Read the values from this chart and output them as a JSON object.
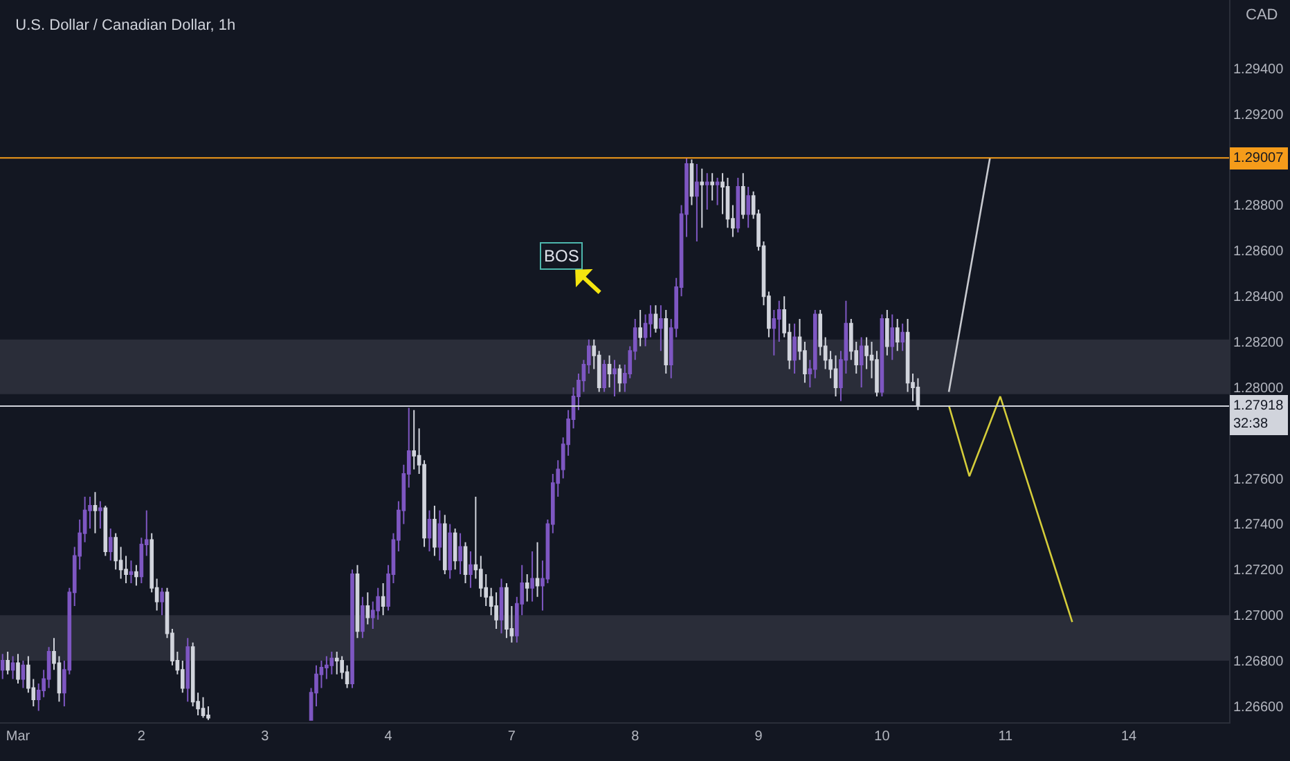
{
  "chart_data": {
    "type": "candlestick",
    "title": "U.S. Dollar / Canadian Dollar, 1h",
    "ylabel": "CAD",
    "categories": [
      null,
      null,
      null,
      "Mar",
      null,
      null,
      null,
      null,
      null,
      null,
      null,
      null,
      null,
      null,
      null,
      null,
      null,
      null,
      null,
      null,
      null,
      null,
      null,
      null,
      null,
      null,
      null,
      "2",
      null,
      null,
      null,
      null,
      null,
      null,
      null,
      null,
      null,
      null,
      null,
      null,
      null,
      null,
      null,
      null,
      null,
      null,
      null,
      null,
      null,
      null,
      null,
      "3",
      null,
      null,
      null,
      null,
      null,
      null,
      null,
      null,
      null,
      null,
      null,
      null,
      null,
      null,
      null,
      null,
      null,
      null,
      null,
      null,
      null,
      null,
      null,
      "4",
      null,
      null,
      null,
      null,
      null,
      null,
      null,
      null,
      null,
      null,
      null,
      null,
      null,
      null,
      null,
      null,
      null,
      null,
      null,
      null,
      null,
      null,
      null,
      "7",
      null,
      null,
      null,
      null,
      null,
      null,
      null,
      null,
      null,
      null,
      null,
      null,
      null,
      null,
      null,
      null,
      null,
      null,
      null,
      null,
      null,
      null,
      null,
      "8",
      null,
      null,
      null,
      null,
      null,
      null,
      null,
      null,
      null,
      null,
      null,
      null,
      null,
      null,
      null,
      null,
      null,
      null,
      null,
      null,
      null,
      null,
      null,
      "9",
      null,
      null,
      null,
      null,
      null,
      null,
      null,
      null,
      null,
      null,
      null,
      null,
      null,
      null,
      null,
      null,
      null,
      null,
      null,
      null,
      null,
      null,
      null,
      "10",
      null,
      null,
      null,
      null,
      null,
      null,
      null,
      null,
      null,
      null,
      null,
      null,
      null,
      null,
      null,
      null,
      null,
      null,
      null,
      null,
      null,
      null,
      null,
      "11",
      null,
      null,
      null,
      null,
      null,
      null,
      null,
      null,
      null,
      null,
      null,
      null,
      null,
      null,
      null,
      null,
      null,
      null,
      null,
      null,
      null,
      null,
      null,
      "14",
      null,
      null,
      null,
      null,
      null,
      null,
      null,
      null,
      null,
      null,
      null,
      null,
      null,
      null,
      null,
      null,
      null,
      null,
      null
    ],
    "ohlc": [
      [
        1.2676,
        1.2683,
        1.2672,
        1.268
      ],
      [
        1.268,
        1.2684,
        1.2674,
        1.2676
      ],
      [
        1.2676,
        1.2682,
        1.2672,
        1.2679
      ],
      [
        1.2679,
        1.2683,
        1.267,
        1.2672
      ],
      [
        1.2672,
        1.268,
        1.2668,
        1.2678
      ],
      [
        1.2678,
        1.2682,
        1.2666,
        1.2668
      ],
      [
        1.2668,
        1.2672,
        1.266,
        1.2663
      ],
      [
        1.2663,
        1.267,
        1.2658,
        1.2667
      ],
      [
        1.2667,
        1.2676,
        1.2664,
        1.2672
      ],
      [
        1.2672,
        1.2686,
        1.2668,
        1.2684
      ],
      [
        1.2684,
        1.269,
        1.2676,
        1.2679
      ],
      [
        1.2679,
        1.2682,
        1.2662,
        1.2666
      ],
      [
        1.2666,
        1.268,
        1.266,
        1.2676
      ],
      [
        1.2676,
        1.2712,
        1.2674,
        1.271
      ],
      [
        1.271,
        1.273,
        1.2704,
        1.2726
      ],
      [
        1.2726,
        1.2742,
        1.272,
        1.2736
      ],
      [
        1.2736,
        1.2752,
        1.2732,
        1.2746
      ],
      [
        1.2746,
        1.2752,
        1.2738,
        1.2748
      ],
      [
        1.2748,
        1.2754,
        1.2736,
        1.2746
      ],
      [
        1.2746,
        1.275,
        1.2738,
        1.2747
      ],
      [
        1.2747,
        1.2748,
        1.2726,
        1.2728
      ],
      [
        1.2728,
        1.2738,
        1.2724,
        1.2734
      ],
      [
        1.2734,
        1.2736,
        1.272,
        1.2724
      ],
      [
        1.2724,
        1.273,
        1.2716,
        1.272
      ],
      [
        1.272,
        1.2726,
        1.2714,
        1.2718
      ],
      [
        1.2718,
        1.2724,
        1.2714,
        1.2719
      ],
      [
        1.2719,
        1.2722,
        1.2713,
        1.2717
      ],
      [
        1.2717,
        1.2734,
        1.2714,
        1.2731
      ],
      [
        1.2731,
        1.2746,
        1.2726,
        1.2733
      ],
      [
        1.2733,
        1.2736,
        1.271,
        1.2712
      ],
      [
        1.2712,
        1.2716,
        1.2702,
        1.2706
      ],
      [
        1.2706,
        1.2712,
        1.27,
        1.271
      ],
      [
        1.271,
        1.2712,
        1.269,
        1.2692
      ],
      [
        1.2692,
        1.2694,
        1.2678,
        1.268
      ],
      [
        1.268,
        1.2684,
        1.2674,
        1.2676
      ],
      [
        1.2676,
        1.268,
        1.2666,
        1.2668
      ],
      [
        1.2668,
        1.269,
        1.2662,
        1.2686
      ],
      [
        1.2686,
        1.2688,
        1.266,
        1.2662
      ],
      [
        1.2662,
        1.2666,
        1.2656,
        1.2659
      ],
      [
        1.2659,
        1.2664,
        1.2655,
        1.2656
      ],
      [
        1.2656,
        1.266,
        1.2654,
        1.2655
      ],
      null,
      null,
      null,
      null,
      null,
      null,
      null,
      null,
      null,
      null,
      null,
      null,
      null,
      null,
      null,
      null,
      null,
      null,
      null,
      [
        1.2654,
        1.2668,
        1.2654,
        1.2666
      ],
      [
        1.2666,
        1.2678,
        1.266,
        1.2674
      ],
      [
        1.2674,
        1.268,
        1.2668,
        1.2677
      ],
      [
        1.2677,
        1.2682,
        1.2672,
        1.2678
      ],
      [
        1.2678,
        1.2684,
        1.2674,
        1.2681
      ],
      [
        1.2681,
        1.2684,
        1.2674,
        1.268
      ],
      [
        1.268,
        1.2682,
        1.2672,
        1.2675
      ],
      [
        1.2675,
        1.2678,
        1.2668,
        1.267
      ],
      [
        1.267,
        1.272,
        1.2668,
        1.2718
      ],
      [
        1.2718,
        1.2722,
        1.269,
        1.2693
      ],
      [
        1.2693,
        1.2708,
        1.269,
        1.2704
      ],
      [
        1.2704,
        1.271,
        1.2696,
        1.2699
      ],
      [
        1.2699,
        1.2706,
        1.2694,
        1.2702
      ],
      [
        1.2702,
        1.2712,
        1.2698,
        1.2708
      ],
      [
        1.2708,
        1.2714,
        1.27,
        1.2704
      ],
      [
        1.2704,
        1.2722,
        1.2702,
        1.2718
      ],
      [
        1.2718,
        1.2736,
        1.2714,
        1.2733
      ],
      [
        1.2733,
        1.275,
        1.2728,
        1.2746
      ],
      [
        1.2746,
        1.2766,
        1.274,
        1.2762
      ],
      [
        1.2762,
        1.2791,
        1.2756,
        1.2772
      ],
      [
        1.2772,
        1.279,
        1.2764,
        1.277
      ],
      [
        1.277,
        1.2782,
        1.2762,
        1.2766
      ],
      [
        1.2766,
        1.2768,
        1.273,
        1.2734
      ],
      [
        1.2734,
        1.2746,
        1.2728,
        1.2742
      ],
      [
        1.2742,
        1.2748,
        1.2726,
        1.273
      ],
      [
        1.273,
        1.2746,
        1.2724,
        1.274
      ],
      [
        1.274,
        1.2744,
        1.2718,
        1.272
      ],
      [
        1.272,
        1.274,
        1.2716,
        1.2736
      ],
      [
        1.2736,
        1.2738,
        1.272,
        1.2724
      ],
      [
        1.2724,
        1.2736,
        1.2718,
        1.273
      ],
      [
        1.273,
        1.2732,
        1.2714,
        1.2718
      ],
      [
        1.2718,
        1.2728,
        1.2712,
        1.2722
      ],
      [
        1.2722,
        1.2752,
        1.2716,
        1.272
      ],
      [
        1.272,
        1.2726,
        1.2708,
        1.2712
      ],
      [
        1.2712,
        1.2718,
        1.2704,
        1.2708
      ],
      [
        1.2708,
        1.2712,
        1.27,
        1.2704
      ],
      [
        1.2704,
        1.271,
        1.2694,
        1.2698
      ],
      [
        1.2698,
        1.2716,
        1.2692,
        1.2712
      ],
      [
        1.2712,
        1.2714,
        1.269,
        1.2694
      ],
      [
        1.2694,
        1.2704,
        1.2688,
        1.2691
      ],
      [
        1.2691,
        1.2708,
        1.2688,
        1.2705
      ],
      [
        1.2705,
        1.2722,
        1.27,
        1.2714
      ],
      [
        1.2714,
        1.2718,
        1.2706,
        1.2712
      ],
      [
        1.2712,
        1.2728,
        1.2706,
        1.2716
      ],
      [
        1.2716,
        1.2732,
        1.2708,
        1.2713
      ],
      [
        1.2713,
        1.2724,
        1.2702,
        1.2716
      ],
      [
        1.2716,
        1.2742,
        1.2714,
        1.274
      ],
      [
        1.274,
        1.2762,
        1.2736,
        1.2758
      ],
      [
        1.2758,
        1.2768,
        1.2752,
        1.2764
      ],
      [
        1.2764,
        1.2778,
        1.276,
        1.2775
      ],
      [
        1.2775,
        1.279,
        1.277,
        1.2786
      ],
      [
        1.2786,
        1.28,
        1.2782,
        1.2796
      ],
      [
        1.2796,
        1.2806,
        1.279,
        1.2803
      ],
      [
        1.2803,
        1.2812,
        1.2798,
        1.281
      ],
      [
        1.281,
        1.2821,
        1.2806,
        1.2818
      ],
      [
        1.2818,
        1.2821,
        1.2808,
        1.2814
      ],
      [
        1.2814,
        1.2816,
        1.2798,
        1.28
      ],
      [
        1.28,
        1.2812,
        1.2798,
        1.281
      ],
      [
        1.281,
        1.2814,
        1.28,
        1.2806
      ],
      [
        1.2806,
        1.2812,
        1.2796,
        1.2808
      ],
      [
        1.2808,
        1.281,
        1.2798,
        1.2802
      ],
      [
        1.2802,
        1.281,
        1.2798,
        1.2806
      ],
      [
        1.2806,
        1.2818,
        1.2804,
        1.2816
      ],
      [
        1.2816,
        1.283,
        1.2812,
        1.2826
      ],
      [
        1.2826,
        1.2834,
        1.2818,
        1.2822
      ],
      [
        1.2822,
        1.2832,
        1.2818,
        1.2828
      ],
      [
        1.2828,
        1.2836,
        1.2822,
        1.2832
      ],
      [
        1.2832,
        1.2836,
        1.2824,
        1.2826
      ],
      [
        1.2826,
        1.2836,
        1.2816,
        1.283
      ],
      [
        1.283,
        1.2834,
        1.2806,
        1.281
      ],
      [
        1.281,
        1.283,
        1.2804,
        1.2826
      ],
      [
        1.2826,
        1.2848,
        1.2822,
        1.2844
      ],
      [
        1.2844,
        1.288,
        1.284,
        1.2876
      ],
      [
        1.2876,
        1.29007,
        1.2866,
        1.2898
      ],
      [
        1.2898,
        1.29,
        1.288,
        1.2884
      ],
      [
        1.2884,
        1.2898,
        1.2864,
        1.289
      ],
      [
        1.289,
        1.2896,
        1.287,
        1.2889
      ],
      [
        1.2889,
        1.2894,
        1.2878,
        1.289
      ],
      [
        1.289,
        1.2894,
        1.2882,
        1.2889
      ],
      [
        1.2889,
        1.2892,
        1.288,
        1.289
      ],
      [
        1.289,
        1.2894,
        1.2876,
        1.2888
      ],
      [
        1.2888,
        1.2892,
        1.287,
        1.2874
      ],
      [
        1.2874,
        1.288,
        1.2866,
        1.287
      ],
      [
        1.287,
        1.2892,
        1.2868,
        1.2888
      ],
      [
        1.2888,
        1.2894,
        1.2874,
        1.2876
      ],
      [
        1.2876,
        1.2888,
        1.287,
        1.2884
      ],
      [
        1.2884,
        1.2886,
        1.2874,
        1.2876
      ],
      [
        1.2876,
        1.2878,
        1.286,
        1.2862
      ],
      [
        1.2862,
        1.2864,
        1.2836,
        1.284
      ],
      [
        1.284,
        1.2842,
        1.2822,
        1.2826
      ],
      [
        1.2826,
        1.2834,
        1.2814,
        1.283
      ],
      [
        1.283,
        1.2838,
        1.282,
        1.2834
      ],
      [
        1.2834,
        1.284,
        1.2822,
        1.2824
      ],
      [
        1.2824,
        1.2828,
        1.2808,
        1.2812
      ],
      [
        1.2812,
        1.2828,
        1.2806,
        1.2822
      ],
      [
        1.2822,
        1.283,
        1.2812,
        1.2816
      ],
      [
        1.2816,
        1.282,
        1.2802,
        1.2806
      ],
      [
        1.2806,
        1.2812,
        1.28,
        1.2808
      ],
      [
        1.2808,
        1.2834,
        1.2804,
        1.2832
      ],
      [
        1.2832,
        1.2834,
        1.2814,
        1.2818
      ],
      [
        1.2818,
        1.2822,
        1.2808,
        1.2812
      ],
      [
        1.2812,
        1.2816,
        1.2804,
        1.2808
      ],
      [
        1.2808,
        1.2814,
        1.2796,
        1.28
      ],
      [
        1.28,
        1.2816,
        1.2794,
        1.2812
      ],
      [
        1.2812,
        1.2838,
        1.2806,
        1.2828
      ],
      [
        1.2828,
        1.283,
        1.2812,
        1.2816
      ],
      [
        1.2816,
        1.282,
        1.2806,
        1.281
      ],
      [
        1.281,
        1.2822,
        1.28,
        1.2818
      ],
      [
        1.2818,
        1.2822,
        1.2808,
        1.2814
      ],
      [
        1.2814,
        1.282,
        1.2804,
        1.2812
      ],
      [
        1.2812,
        1.2816,
        1.2796,
        1.2798
      ],
      [
        1.2798,
        1.2832,
        1.2796,
        1.283
      ],
      [
        1.283,
        1.2834,
        1.2814,
        1.2818
      ],
      [
        1.2818,
        1.2832,
        1.2812,
        1.2826
      ],
      [
        1.2826,
        1.283,
        1.2816,
        1.282
      ],
      [
        1.282,
        1.2828,
        1.2816,
        1.2824
      ],
      [
        1.2824,
        1.283,
        1.2798,
        1.2802
      ],
      [
        1.2802,
        1.2806,
        1.2794,
        1.28
      ],
      [
        1.28,
        1.2804,
        1.279,
        1.27918
      ],
      null,
      null,
      null,
      null,
      null,
      null,
      null,
      null,
      null,
      null,
      null,
      null,
      null,
      null,
      null,
      null,
      null,
      null,
      null,
      null,
      null,
      null,
      null,
      null,
      null,
      null,
      null,
      null,
      null,
      null,
      null,
      null,
      null,
      null,
      null,
      null,
      null,
      null,
      null,
      null,
      null,
      null,
      null,
      null,
      null,
      null,
      null,
      null,
      null,
      null,
      null,
      null,
      null,
      null,
      null,
      null,
      null,
      null,
      null,
      null
    ],
    "series": [
      {
        "type": "line",
        "color": "#c8cad0",
        "values": [
          null,
          null,
          null,
          null,
          null,
          null,
          null,
          null,
          null,
          null,
          null,
          null,
          null,
          null,
          null,
          null,
          null,
          null,
          null,
          null,
          null,
          null,
          null,
          null,
          null,
          null,
          null,
          null,
          null,
          null,
          null,
          null,
          null,
          null,
          null,
          null,
          null,
          null,
          null,
          null,
          null,
          null,
          null,
          null,
          null,
          null,
          null,
          null,
          null,
          null,
          null,
          null,
          null,
          null,
          null,
          null,
          null,
          null,
          null,
          null,
          null,
          null,
          null,
          null,
          null,
          null,
          null,
          null,
          null,
          null,
          null,
          null,
          null,
          null,
          null,
          null,
          null,
          null,
          null,
          null,
          null,
          null,
          null,
          null,
          null,
          null,
          null,
          null,
          null,
          null,
          null,
          null,
          null,
          null,
          null,
          null,
          null,
          null,
          null,
          null,
          null,
          null,
          null,
          null,
          null,
          null,
          null,
          null,
          null,
          null,
          null,
          null,
          null,
          null,
          null,
          null,
          null,
          null,
          null,
          null,
          null,
          null,
          null,
          null,
          null,
          null,
          null,
          null,
          null,
          null,
          null,
          null,
          null,
          null,
          null,
          null,
          null,
          null,
          null,
          null,
          null,
          null,
          null,
          null,
          null,
          null,
          null,
          null,
          null,
          null,
          null,
          null,
          null,
          null,
          null,
          null,
          null,
          null,
          null,
          null,
          null,
          null,
          null,
          null,
          null,
          null,
          null,
          null,
          null,
          null,
          null,
          null,
          null,
          null,
          null,
          null,
          null,
          null,
          null,
          null,
          null,
          null,
          null,
          null,
          1.2798,
          null,
          null,
          null,
          null,
          null,
          null,
          null,
          1.29007,
          null,
          null,
          null,
          null,
          null,
          null,
          null,
          null,
          null,
          null,
          null,
          null,
          null,
          null,
          null,
          null,
          null,
          null,
          null,
          null,
          null,
          null,
          null,
          null,
          null,
          null,
          null,
          null,
          null,
          null,
          null,
          null,
          null,
          null,
          null,
          null,
          null,
          null,
          null,
          null,
          null,
          null,
          null,
          null,
          null,
          null
        ]
      },
      {
        "type": "line",
        "color": "#d4cc3a",
        "values": [
          null,
          null,
          null,
          null,
          null,
          null,
          null,
          null,
          null,
          null,
          null,
          null,
          null,
          null,
          null,
          null,
          null,
          null,
          null,
          null,
          null,
          null,
          null,
          null,
          null,
          null,
          null,
          null,
          null,
          null,
          null,
          null,
          null,
          null,
          null,
          null,
          null,
          null,
          null,
          null,
          null,
          null,
          null,
          null,
          null,
          null,
          null,
          null,
          null,
          null,
          null,
          null,
          null,
          null,
          null,
          null,
          null,
          null,
          null,
          null,
          null,
          null,
          null,
          null,
          null,
          null,
          null,
          null,
          null,
          null,
          null,
          null,
          null,
          null,
          null,
          null,
          null,
          null,
          null,
          null,
          null,
          null,
          null,
          null,
          null,
          null,
          null,
          null,
          null,
          null,
          null,
          null,
          null,
          null,
          null,
          null,
          null,
          null,
          null,
          null,
          null,
          null,
          null,
          null,
          null,
          null,
          null,
          null,
          null,
          null,
          null,
          null,
          null,
          null,
          null,
          null,
          null,
          null,
          null,
          null,
          null,
          null,
          null,
          null,
          null,
          null,
          null,
          null,
          null,
          null,
          null,
          null,
          null,
          null,
          null,
          null,
          null,
          null,
          null,
          null,
          null,
          null,
          null,
          null,
          null,
          null,
          null,
          null,
          null,
          null,
          null,
          null,
          null,
          null,
          null,
          null,
          null,
          null,
          null,
          null,
          null,
          null,
          null,
          null,
          null,
          null,
          null,
          null,
          null,
          null,
          null,
          null,
          null,
          null,
          null,
          null,
          null,
          null,
          null,
          null,
          null,
          null,
          null,
          null,
          1.2792,
          null,
          null,
          null,
          1.2761,
          null,
          null,
          null,
          null,
          null,
          1.2796,
          null,
          null,
          null,
          null,
          null,
          null,
          null,
          null,
          null,
          null,
          null,
          null,
          null,
          1.2697,
          null,
          null,
          null,
          null,
          null,
          null,
          null,
          null,
          null,
          null,
          null,
          null,
          null,
          null,
          null,
          null,
          null,
          null,
          null,
          null,
          null,
          null,
          null,
          null,
          null,
          null,
          null,
          null,
          null,
          null
        ]
      }
    ],
    "ylim": [
      1.2653,
      1.297
    ],
    "yticks": [
      {
        "value": 1.266,
        "label": "1.26600"
      },
      {
        "value": 1.268,
        "label": "1.26800"
      },
      {
        "value": 1.27,
        "label": "1.27000"
      },
      {
        "value": 1.272,
        "label": "1.27200"
      },
      {
        "value": 1.274,
        "label": "1.27400"
      },
      {
        "value": 1.276,
        "label": "1.27600"
      },
      {
        "value": 1.28,
        "label": "1.28000"
      },
      {
        "value": 1.282,
        "label": "1.28200"
      },
      {
        "value": 1.284,
        "label": "1.28400"
      },
      {
        "value": 1.286,
        "label": "1.28600"
      },
      {
        "value": 1.288,
        "label": "1.28800"
      },
      {
        "value": 1.292,
        "label": "1.29200"
      },
      {
        "value": 1.294,
        "label": "1.29400"
      }
    ],
    "bands": [
      {
        "axis": "y",
        "from": 1.2797,
        "to": 1.2821,
        "color": "#2a2d39"
      },
      {
        "axis": "y",
        "from": 1.268,
        "to": 1.27,
        "color": "#2a2d39"
      }
    ],
    "ref_lines": [
      {
        "axis": "y",
        "value": 1.29007,
        "label": "1.29007",
        "color": "#f59c1a"
      },
      {
        "axis": "y",
        "value": 1.27918,
        "label": "1.27918\n32:38",
        "color": "#d1d4dc"
      }
    ],
    "annotations": [
      "BOS"
    ]
  }
}
